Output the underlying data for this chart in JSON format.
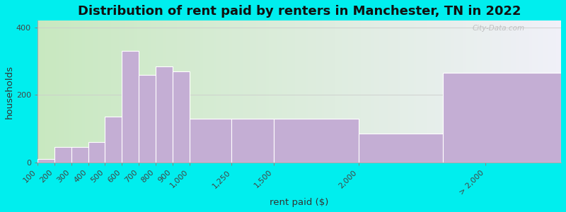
{
  "title": "Distribution of rent paid by renters in Manchester, TN in 2022",
  "xlabel": "rent paid ($)",
  "ylabel": "households",
  "bar_color": "#c4aed4",
  "bar_edge_color": "#ffffff",
  "background_color": "#00eeee",
  "plot_bg_left": "#c8e8c0",
  "plot_bg_right": "#f0f0f8",
  "categories": [
    "100",
    "200",
    "300",
    "400",
    "500",
    "600",
    "700",
    "800",
    "900",
    "1,000",
    "1,250",
    "1,500",
    "2,000",
    "> 2,000"
  ],
  "bin_edges": [
    100,
    200,
    300,
    400,
    500,
    600,
    700,
    800,
    900,
    1000,
    1250,
    1500,
    2000,
    2500,
    3200
  ],
  "tick_positions": [
    100,
    200,
    300,
    400,
    500,
    600,
    700,
    800,
    900,
    1000,
    1250,
    1500,
    2000,
    2750
  ],
  "values": [
    10,
    45,
    45,
    60,
    135,
    330,
    260,
    285,
    270,
    130,
    130,
    130,
    85,
    265
  ],
  "ylim": [
    0,
    420
  ],
  "yticks": [
    0,
    200,
    400
  ],
  "title_fontsize": 13,
  "axis_label_fontsize": 9.5,
  "tick_fontsize": 8,
  "watermark": "City-Data.com"
}
